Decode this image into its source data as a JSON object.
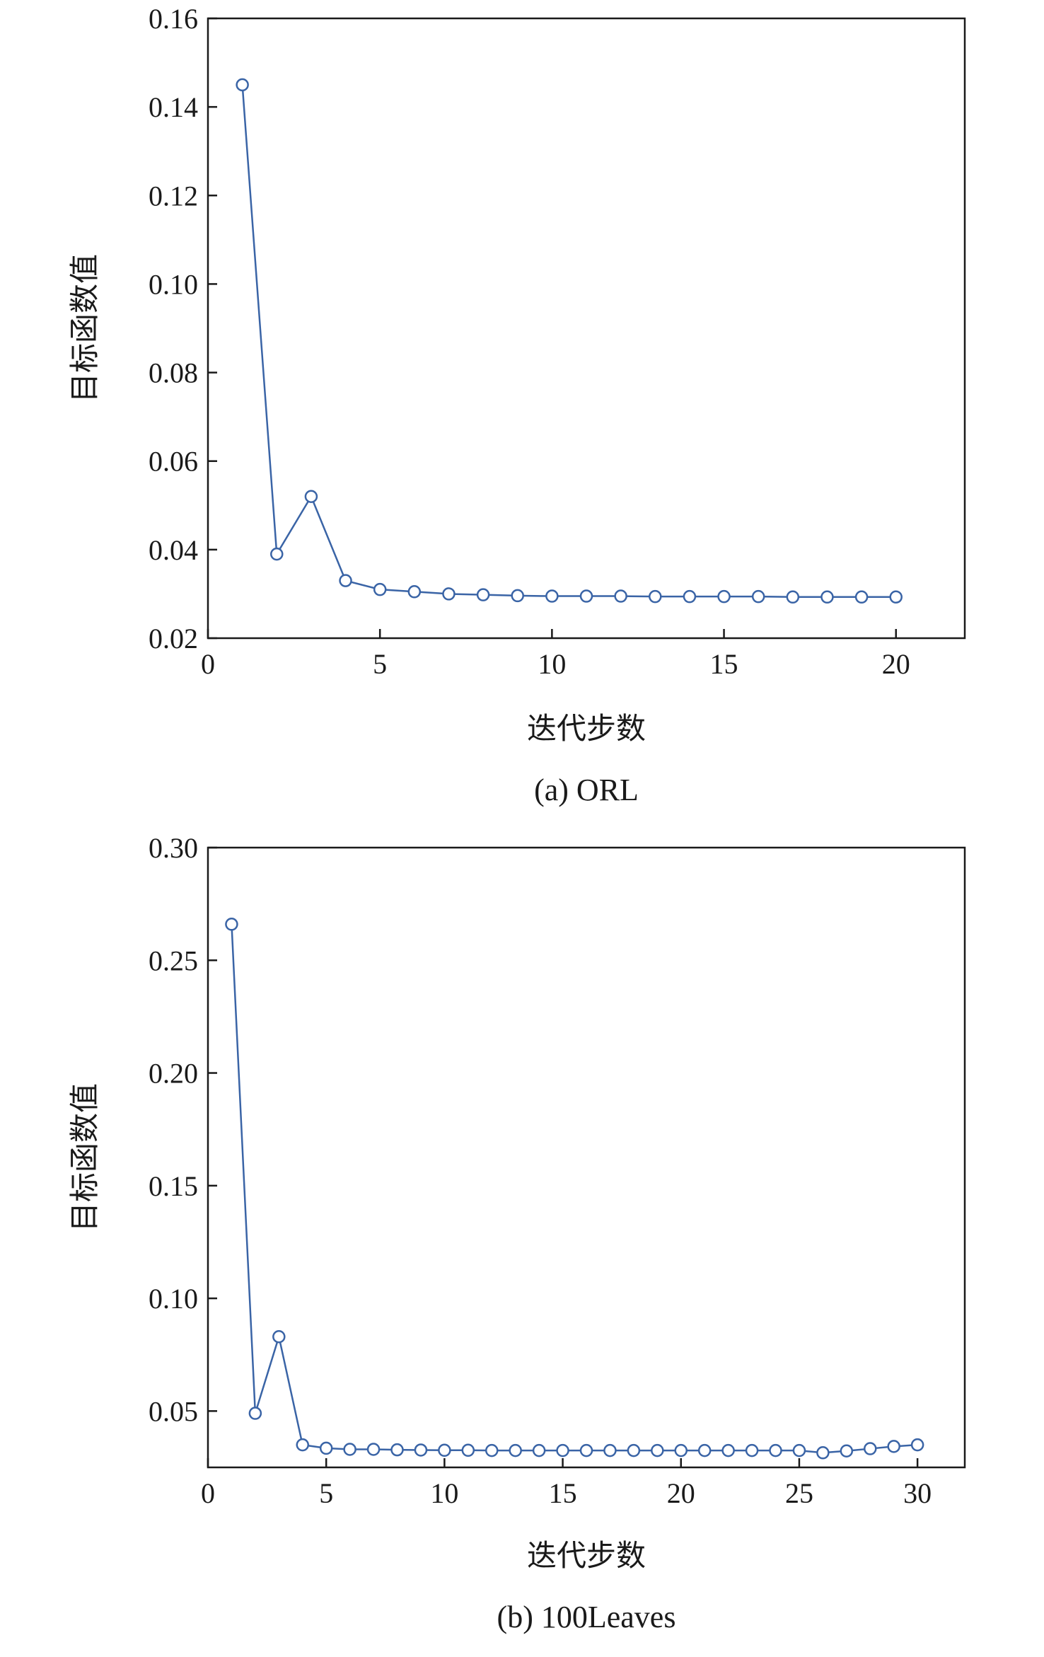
{
  "colors": {
    "series": "#3a64a6",
    "axis": "#1a1a1a"
  },
  "chart_data": [
    {
      "type": "line",
      "caption": "(a) ORL",
      "xlabel": "迭代步数",
      "ylabel": "目标函数值",
      "xlim": [
        0,
        22
      ],
      "ylim": [
        0.02,
        0.16
      ],
      "xticks": [
        0,
        5,
        10,
        15,
        20
      ],
      "xtick_labels": [
        "0",
        "5",
        "10",
        "15",
        "20"
      ],
      "yticks": [
        0.02,
        0.04,
        0.06,
        0.08,
        0.1,
        0.12,
        0.14,
        0.16
      ],
      "ytick_labels": [
        "0.02",
        "0.04",
        "0.06",
        "0.08",
        "0.10",
        "0.12",
        "0.14",
        "0.16"
      ],
      "grid": false,
      "marker": "open-circle",
      "x": [
        1,
        2,
        3,
        4,
        5,
        6,
        7,
        8,
        9,
        10,
        11,
        12,
        13,
        14,
        15,
        16,
        17,
        18,
        19,
        20
      ],
      "y": [
        0.145,
        0.039,
        0.052,
        0.033,
        0.031,
        0.0305,
        0.03,
        0.0298,
        0.0296,
        0.0295,
        0.0295,
        0.0295,
        0.0294,
        0.0294,
        0.0294,
        0.0294,
        0.0293,
        0.0293,
        0.0293,
        0.0293
      ]
    },
    {
      "type": "line",
      "caption": "(b) 100Leaves",
      "xlabel": "迭代步数",
      "ylabel": "目标函数值",
      "xlim": [
        0,
        32
      ],
      "ylim": [
        0.025,
        0.3
      ],
      "xticks": [
        0,
        5,
        10,
        15,
        20,
        25,
        30
      ],
      "xtick_labels": [
        "0",
        "5",
        "10",
        "15",
        "20",
        "25",
        "30"
      ],
      "yticks": [
        0.05,
        0.1,
        0.15,
        0.2,
        0.25,
        0.3
      ],
      "ytick_labels": [
        "0.05",
        "0.10",
        "0.15",
        "0.20",
        "0.25",
        "0.30"
      ],
      "grid": false,
      "marker": "open-circle",
      "x": [
        1,
        2,
        3,
        4,
        5,
        6,
        7,
        8,
        9,
        10,
        11,
        12,
        13,
        14,
        15,
        16,
        17,
        18,
        19,
        20,
        21,
        22,
        23,
        24,
        25,
        26,
        27,
        28,
        29,
        30
      ],
      "y": [
        0.266,
        0.049,
        0.083,
        0.035,
        0.0335,
        0.033,
        0.033,
        0.0328,
        0.0327,
        0.0326,
        0.0326,
        0.0325,
        0.0325,
        0.0325,
        0.0325,
        0.0325,
        0.0325,
        0.0325,
        0.0325,
        0.0325,
        0.0325,
        0.0325,
        0.0325,
        0.0325,
        0.0325,
        0.0315,
        0.0323,
        0.0333,
        0.0343,
        0.035
      ]
    }
  ]
}
